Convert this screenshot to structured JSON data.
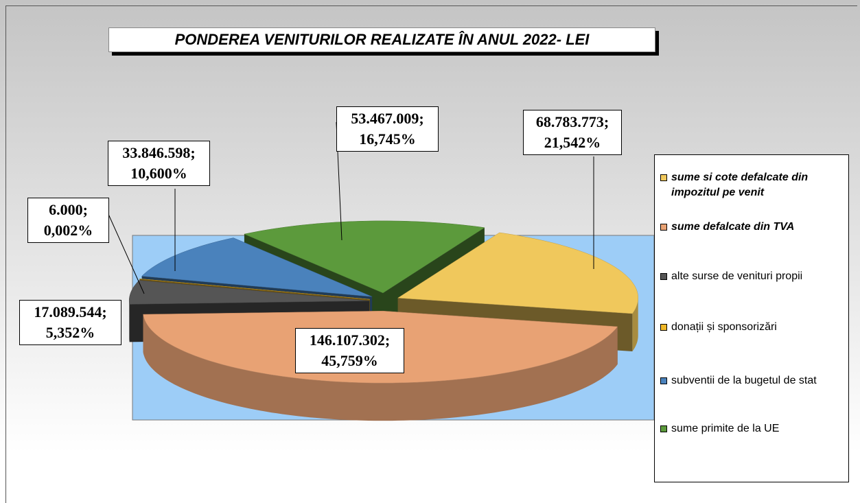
{
  "chart_data": {
    "type": "pie",
    "title": "PONDEREA VENITURILOR REALIZATE ÎN ANUL 2022- LEI",
    "categories": [
      "sume si cote defalcate din impozitul pe venit",
      "sume defalcate din TVA",
      "alte surse de venituri propii",
      "donații și sponsorizări",
      "subventii de la bugetul de stat",
      "sume primite de la UE"
    ],
    "values": [
      68783773,
      146107302,
      17089544,
      6000,
      33846598,
      53467009
    ],
    "value_labels": [
      "68.783.773; 21,542%",
      "146.107.302; 45,759%",
      "17.089.544; 5,352%",
      "6.000; 0,002%",
      "33.846.598; 10,600%",
      "53.467.009; 16,745%"
    ],
    "colors": [
      "#f0c85c",
      "#e8a274",
      "#555555",
      "#f0b828",
      "#4a82bc",
      "#5c9a3c"
    ]
  }
}
